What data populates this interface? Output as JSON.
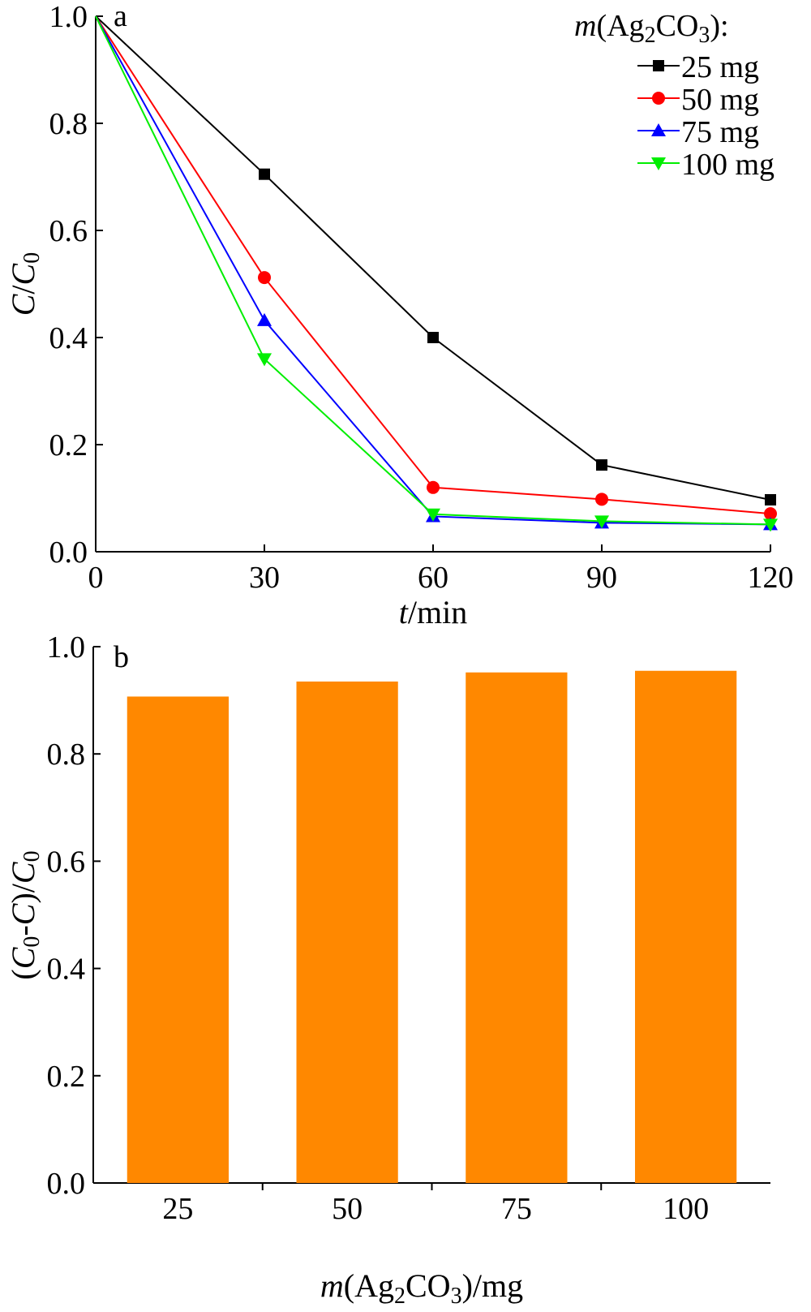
{
  "chart_data": [
    {
      "panel": "a",
      "type": "line",
      "xlabel": {
        "italic": "t",
        "rest": "/min"
      },
      "ylabel": {
        "italic": "C",
        "rest": "/",
        "italic2": "C",
        "sub": "0"
      },
      "xlim": [
        0,
        120
      ],
      "ylim": [
        0,
        1.0
      ],
      "xticks": [
        "0",
        "30",
        "60",
        "90",
        "120"
      ],
      "yticks": [
        "0.0",
        "0.2",
        "0.4",
        "0.6",
        "0.8",
        "1.0"
      ],
      "grid": false,
      "legend": {
        "placement": "top-right",
        "title": {
          "italic": "m",
          "pre": "(Ag",
          "sub1": "2",
          "mid": "CO",
          "sub2": "3",
          "post": "):"
        }
      },
      "x": [
        0,
        30,
        60,
        90,
        120
      ],
      "series": [
        {
          "name": "25 mg",
          "color": "#000000",
          "marker": "square",
          "values": [
            1.0,
            0.705,
            0.4,
            0.162,
            0.097
          ]
        },
        {
          "name": "50 mg",
          "color": "#ff0000",
          "marker": "circle",
          "values": [
            1.0,
            0.512,
            0.12,
            0.098,
            0.071
          ]
        },
        {
          "name": "75 mg",
          "color": "#0000ff",
          "marker": "triangle-up",
          "values": [
            1.0,
            0.432,
            0.066,
            0.054,
            0.051
          ]
        },
        {
          "name": "100 mg",
          "color": "#00ee00",
          "marker": "triangle-down",
          "values": [
            1.0,
            0.36,
            0.07,
            0.057,
            0.051
          ]
        }
      ]
    },
    {
      "panel": "b",
      "type": "bar",
      "xlabel": {
        "italic": "m",
        "pre": "(Ag",
        "sub1": "2",
        "mid": "CO",
        "sub2": "3",
        "post": ")/mg"
      },
      "ylabel": {
        "p1": "(",
        "italic1": "C",
        "sub1": "0",
        "p2": "-",
        "italic2": "C",
        "p3": ")/",
        "italic3": "C",
        "sub2": "0"
      },
      "categories": [
        "25",
        "50",
        "75",
        "100"
      ],
      "values": [
        0.907,
        0.935,
        0.952,
        0.955
      ],
      "color": "#ff8800",
      "ylim": [
        0,
        1.0
      ],
      "yticks": [
        "0.0",
        "0.2",
        "0.4",
        "0.6",
        "0.8",
        "1.0"
      ],
      "grid": false
    }
  ]
}
